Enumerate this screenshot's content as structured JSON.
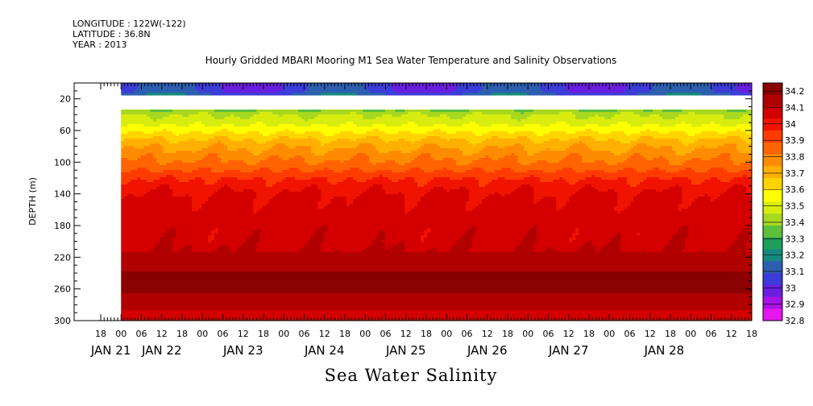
{
  "header": {
    "longitude": "LONGITUDE : 122W(-122)",
    "latitude": "LATITUDE : 36.8N",
    "year": "YEAR : 2013"
  },
  "chart_data": {
    "type": "heatmap",
    "title": "Hourly Gridded MBARI Mooring M1 Sea Water Temperature and Salinity Observations",
    "footer_title": "Sea Water Salinity",
    "ylabel": "DEPTH (m)",
    "xlabel": "",
    "ylim": [
      300,
      0
    ],
    "yticks": [
      20,
      60,
      100,
      140,
      180,
      220,
      260,
      300
    ],
    "x_axis": {
      "hour_labels": [
        "18",
        "00",
        "06",
        "12",
        "18",
        "00",
        "06",
        "12",
        "18",
        "00",
        "06",
        "12",
        "18",
        "00",
        "06",
        "12",
        "18",
        "00",
        "06",
        "12",
        "18",
        "00",
        "06",
        "12",
        "18",
        "00",
        "06",
        "12",
        "18",
        "00",
        "06",
        "12",
        "18"
      ],
      "day_labels": [
        "JAN 21",
        "JAN 22",
        "JAN 23",
        "JAN 24",
        "JAN 25",
        "JAN 26",
        "JAN 27",
        "JAN 28"
      ]
    },
    "colorbar": {
      "levels": [
        34.2,
        34.1,
        34,
        33.9,
        33.8,
        33.7,
        33.6,
        33.5,
        33.4,
        33.3,
        33.2,
        33.1,
        33,
        32.9,
        32.8
      ],
      "colors": [
        "#8b0000",
        "#b00000",
        "#d40000",
        "#f01400",
        "#ff3c00",
        "#ff6400",
        "#ff8c00",
        "#ffb000",
        "#ffd400",
        "#ffff00",
        "#d8ec10",
        "#a8d820",
        "#5cc03c",
        "#1e9e5a",
        "#16887e",
        "#2d5fb0",
        "#3c3cd8",
        "#6a1fe0",
        "#a812e4",
        "#e418ec"
      ],
      "min": 32.8,
      "max": 34.25
    },
    "profile": {
      "depths": [
        10,
        40,
        50,
        60,
        75,
        90,
        105,
        115,
        125,
        135,
        145,
        160,
        180,
        200,
        220,
        235,
        250,
        265,
        280,
        295,
        300
      ],
      "salinity": [
        33.05,
        33.45,
        33.5,
        33.58,
        33.7,
        33.78,
        33.85,
        33.92,
        33.98,
        34.02,
        34.05,
        34.06,
        34.07,
        34.08,
        34.12,
        34.16,
        34.22,
        34.18,
        34.12,
        34.08,
        34.08
      ]
    },
    "data_start_hour_offset": 6,
    "data_gap_depth_m": [
      14,
      33
    ],
    "grid": false,
    "legend_placement": "right colorbar"
  }
}
